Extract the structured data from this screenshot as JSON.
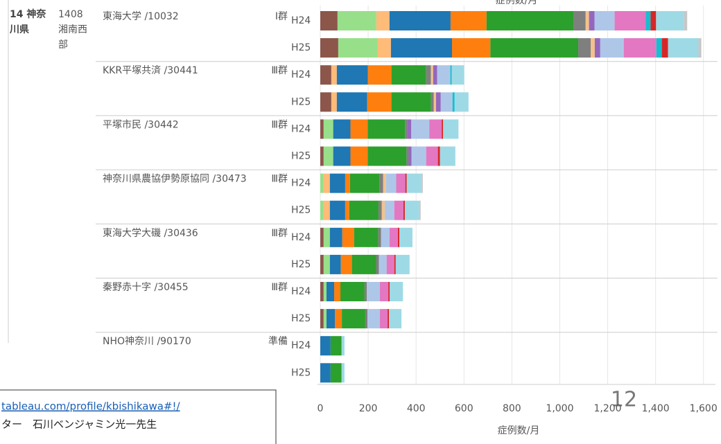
{
  "chart_data": {
    "type": "bar",
    "axis_title_top": "症例数/月",
    "axis_title": "症例数/月",
    "region": "14 神奈川県",
    "area": "1408 湘南西部",
    "hospitals": [
      {
        "name": "東海大学 /10032",
        "group": "Ⅰ群",
        "years": [
          "H24",
          "H25"
        ]
      },
      {
        "name": "KKR平塚共済 /30441",
        "group": "Ⅲ群",
        "years": [
          "H24",
          "H25"
        ]
      },
      {
        "name": "平塚市民 /30442",
        "group": "Ⅲ群",
        "years": [
          "H24",
          "H25"
        ]
      },
      {
        "name": "神奈川県農協伊勢原協同 /30473",
        "group": "Ⅲ群",
        "years": [
          "H24",
          "H25"
        ]
      },
      {
        "name": "東海大学大磯 /30436",
        "group": "Ⅲ群",
        "years": [
          "H24",
          "H25"
        ]
      },
      {
        "name": "秦野赤十字 /30455",
        "group": "Ⅲ群",
        "years": [
          "H24",
          "H25"
        ]
      },
      {
        "name": "NHO神奈川 /90170",
        "group": "準備",
        "years": [
          "H24",
          "H25"
        ]
      }
    ],
    "series": [
      {
        "color": "#8c564b",
        "values": [
          72,
          75,
          46,
          46,
          14,
          14,
          0,
          0,
          14,
          14,
          14,
          14,
          0,
          0
        ]
      },
      {
        "color": "#98df8a",
        "values": [
          162,
          165,
          0,
          0,
          40,
          40,
          14,
          14,
          26,
          26,
          12,
          12,
          0,
          0
        ]
      },
      {
        "color": "#ffbb78",
        "values": [
          55,
          55,
          23,
          23,
          0,
          0,
          26,
          26,
          0,
          0,
          0,
          0,
          0,
          0
        ]
      },
      {
        "color": "#1f77b4",
        "values": [
          255,
          255,
          130,
          127,
          72,
          72,
          64,
          64,
          52,
          46,
          32,
          35,
          43,
          43
        ]
      },
      {
        "color": "#ff7f0e",
        "values": [
          150,
          160,
          98,
          101,
          72,
          72,
          20,
          17,
          49,
          46,
          26,
          29,
          0,
          0
        ]
      },
      {
        "color": "#2ca02c",
        "values": [
          365,
          367,
          145,
          165,
          156,
          162,
          124,
          122,
          101,
          101,
          101,
          98,
          46,
          46
        ]
      },
      {
        "color": "#7f7f7f",
        "values": [
          49,
          52,
          20,
          12,
          9,
          9,
          14,
          14,
          12,
          12,
          9,
          9,
          0,
          0
        ]
      },
      {
        "color": "#f4c28a",
        "values": [
          14,
          17,
          9,
          9,
          0,
          0,
          12,
          12,
          0,
          0,
          0,
          0,
          0,
          0
        ]
      },
      {
        "color": "#9467bd",
        "values": [
          23,
          23,
          17,
          20,
          17,
          12,
          0,
          0,
          0,
          0,
          0,
          0,
          0,
          0
        ]
      },
      {
        "color": "#aec7e8",
        "values": [
          84,
          98,
          55,
          49,
          75,
          61,
          43,
          40,
          35,
          32,
          55,
          52,
          0,
          0
        ]
      },
      {
        "color": "#e377c2",
        "values": [
          130,
          136,
          0,
          0,
          52,
          49,
          38,
          38,
          35,
          32,
          35,
          32,
          0,
          0
        ]
      },
      {
        "color": "#17becf",
        "values": [
          20,
          23,
          6,
          9,
          0,
          0,
          0,
          0,
          0,
          0,
          0,
          0,
          0,
          0
        ]
      },
      {
        "color": "#d62728",
        "values": [
          23,
          26,
          0,
          0,
          6,
          9,
          6,
          6,
          6,
          6,
          6,
          6,
          0,
          0
        ]
      },
      {
        "color": "#9edae5",
        "values": [
          116,
          127,
          52,
          58,
          64,
          64,
          61,
          60,
          55,
          58,
          55,
          52,
          12,
          12
        ]
      },
      {
        "color": "#c7c7c7",
        "values": [
          14,
          12,
          0,
          0,
          0,
          0,
          6,
          6,
          0,
          0,
          0,
          0,
          0,
          0
        ]
      }
    ],
    "xlim": [
      0,
      1650
    ],
    "xticks": [
      0,
      200,
      400,
      600,
      800,
      {
        "value": 1000,
        "label": "1,000"
      },
      {
        "value": 1200,
        "label": "1,200"
      },
      {
        "value": 1400,
        "label": "1,400"
      },
      {
        "value": 1600,
        "label": "1,600"
      }
    ],
    "grid": true
  },
  "page_number": "12",
  "credit": {
    "link": "tableau.com/profile/kbishikawa#!/",
    "author": "ター　石川ベンジャミン光一先生"
  }
}
